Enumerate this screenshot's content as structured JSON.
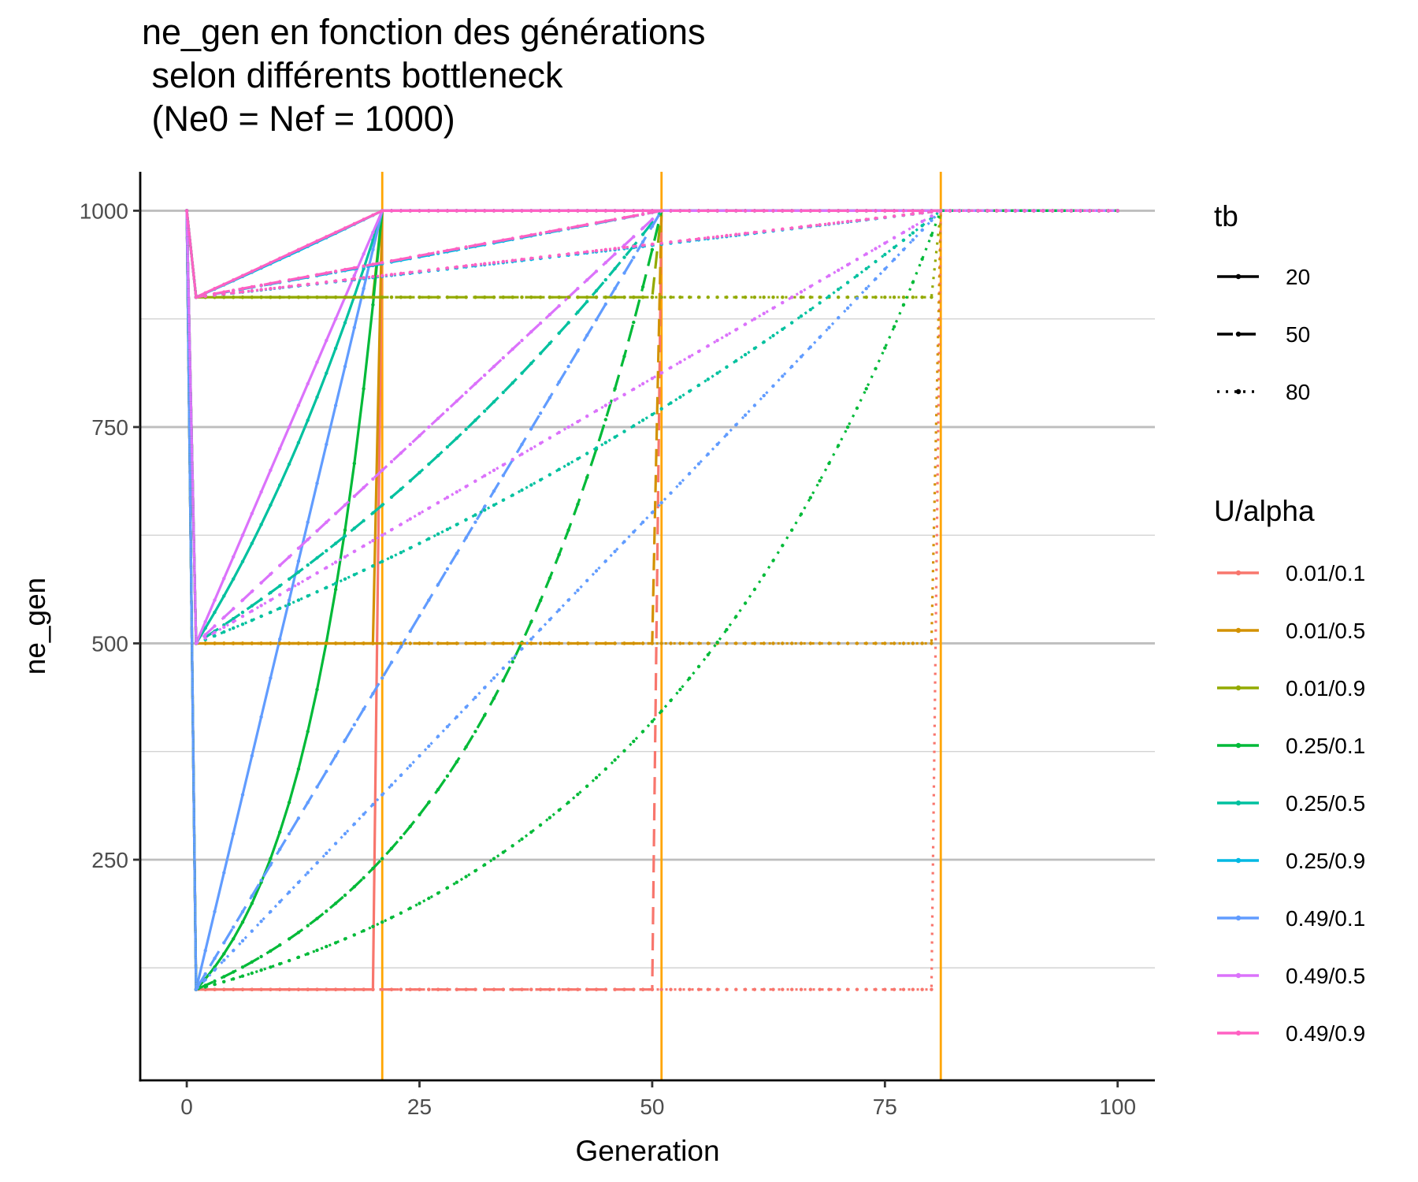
{
  "chart_data": {
    "type": "line",
    "title": [
      "ne_gen en fonction des générations",
      " selon différents bottleneck",
      " (Ne0 = Nef = 1000)"
    ],
    "xlabel": "Generation",
    "ylabel": "ne_gen",
    "xlim": [
      -5,
      104
    ],
    "ylim": [
      -5,
      1045
    ],
    "x_ticks": [
      0,
      25,
      50,
      75,
      100
    ],
    "x_tick_labels": [
      "0",
      "25",
      "50",
      "75",
      "100"
    ],
    "y_ticks": [
      250,
      500,
      750,
      1000
    ],
    "y_tick_labels": [
      "250",
      "500",
      "750",
      "1000"
    ],
    "grid": "horizontal",
    "theme": "classic",
    "bottleneck_duration_values": [
      20,
      50,
      80
    ],
    "vertical_reference_lines": {
      "x": [
        21,
        51,
        81
      ],
      "color": "#FFA500"
    },
    "legend_tb": {
      "title": "tb",
      "entries": [
        {
          "label": "20",
          "linetype": "solid"
        },
        {
          "label": "50",
          "linetype": "dashed"
        },
        {
          "label": "80",
          "linetype": "dotted"
        }
      ]
    },
    "legend_color": {
      "title": "U/alpha",
      "entries": [
        {
          "label": "0.01/0.1",
          "color": "#F8766D",
          "ne_bottleneck": 100,
          "alpha": 0.1
        },
        {
          "label": "0.01/0.5",
          "color": "#D39200",
          "ne_bottleneck": 500,
          "alpha": 0.5
        },
        {
          "label": "0.01/0.9",
          "color": "#93AA00",
          "ne_bottleneck": 900,
          "alpha": 0.9
        },
        {
          "label": "0.25/0.1",
          "color": "#00BA38",
          "ne_bottleneck": 100,
          "alpha": 0.1
        },
        {
          "label": "0.25/0.5",
          "color": "#00C19F",
          "ne_bottleneck": 500,
          "alpha": 0.5
        },
        {
          "label": "0.25/0.9",
          "color": "#00B9E3",
          "ne_bottleneck": 900,
          "alpha": 0.9
        },
        {
          "label": "0.49/0.1",
          "color": "#619CFF",
          "ne_bottleneck": 100,
          "alpha": 0.1
        },
        {
          "label": "0.49/0.5",
          "color": "#DB72FB",
          "ne_bottleneck": 500,
          "alpha": 0.5
        },
        {
          "label": "0.49/0.9",
          "color": "#FF61C3",
          "ne_bottleneck": 900,
          "alpha": 0.9
        }
      ]
    },
    "series_model": {
      "ne0": 1000,
      "nef": 1000,
      "x_range": [
        0,
        100
      ],
      "trajectory": "1000 at generation 0, drops to ne_bottleneck at generation 1, recovers toward 1000 by generation tb+1, then stays at 1000",
      "recovery_shape_by_U": {
        "0.01": "flat at ne_bottleneck until generation tb, then jumps to 1000",
        "0.25": "exponential growth from ne_bottleneck to 1000",
        "0.49": "linear growth from ne_bottleneck to 1000"
      }
    },
    "text_color": "#000000",
    "tick_label_color": "#4D4D4D",
    "major_grid_color": "#BEBEBE",
    "minor_grid_color": "#D3D3D3"
  }
}
